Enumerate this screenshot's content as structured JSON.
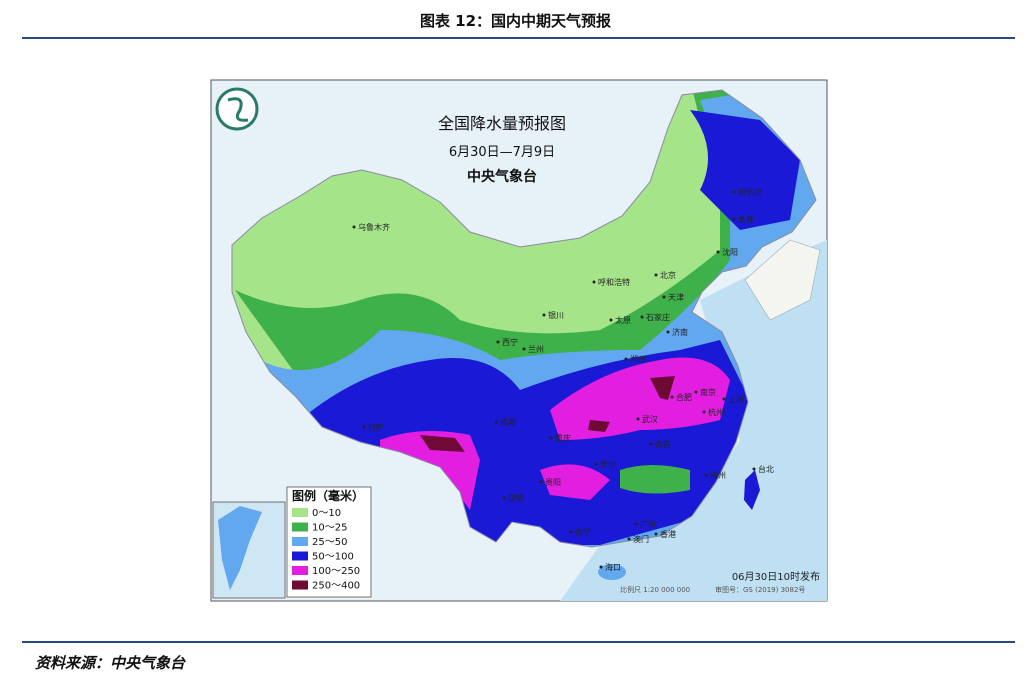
{
  "header": {
    "title": "图表 12：国内中期天气预报"
  },
  "map": {
    "title": "全国降水量预报图",
    "subtitle": "6月30日—7月9日",
    "issuer": "中央气象台",
    "legend": {
      "title": "图例（毫米）",
      "items": [
        {
          "label": "0～10",
          "color": "#a6e48a"
        },
        {
          "label": "10～25",
          "color": "#3fb14a"
        },
        {
          "label": "25～50",
          "color": "#62a8ee"
        },
        {
          "label": "50～100",
          "color": "#1a1ad6"
        },
        {
          "label": "100～250",
          "color": "#e21fe0"
        },
        {
          "label": "250～400",
          "color": "#6e0a35"
        }
      ]
    },
    "cities": [
      "乌鲁木齐",
      "哈尔滨",
      "长春",
      "沈阳",
      "北京",
      "天津",
      "呼和浩特",
      "石家庄",
      "太原",
      "济南",
      "银川",
      "西宁",
      "兰州",
      "郑州",
      "合肥",
      "南京",
      "上海",
      "武汉",
      "成都",
      "重庆",
      "长沙",
      "南昌",
      "杭州",
      "福州",
      "台北",
      "贵阳",
      "昆明",
      "南宁",
      "广州",
      "澳门",
      "香港",
      "海口",
      "拉萨"
    ],
    "issued": "06月30日10时发布",
    "scale": "比例尺 1:20 000 000",
    "approval": "审图号：GS (2019) 3082号"
  },
  "source": "资料来源：中央气象台"
}
